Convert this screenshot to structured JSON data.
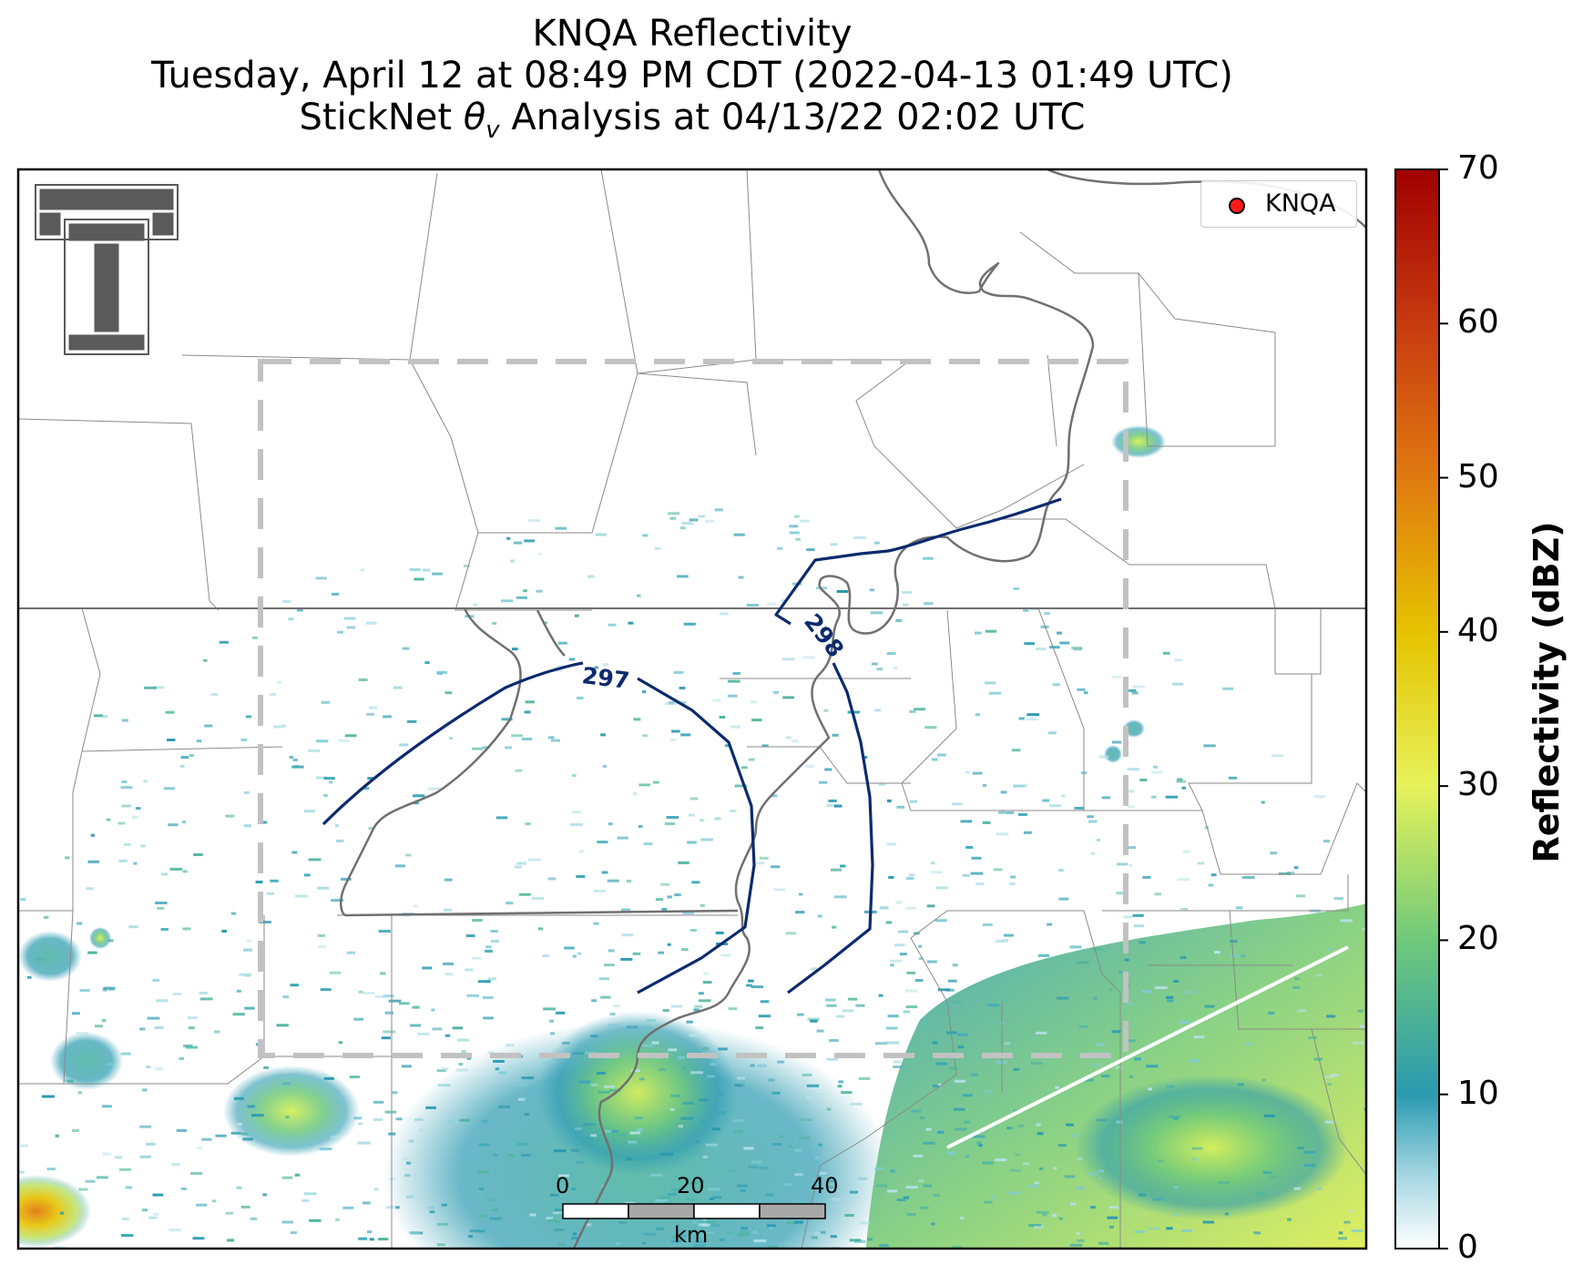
{
  "title": {
    "line1": "KNQA Reflectivity",
    "line2": "Tuesday, April 12 at 08:49 PM CDT (2022-04-13 01:49 UTC)",
    "line3_prefix": "StickNet ",
    "line3_theta": "θ",
    "line3_sub": "v",
    "line3_suffix": " Analysis at 04/13/22 02:02 UTC"
  },
  "legend": {
    "label": "KNQA",
    "marker_color": "#ff1a1a"
  },
  "logo": {
    "icon": "double-t-logo-icon",
    "color": "#555555"
  },
  "contours": [
    {
      "label": "297",
      "color": "#0b2a6e"
    },
    {
      "label": "298",
      "color": "#0b2a6e"
    }
  ],
  "scale_bar": {
    "labels": [
      "0",
      "20",
      "40"
    ],
    "unit": "km"
  },
  "colorbar": {
    "title": "Reflectivity (dBZ)",
    "ticks": [
      "0",
      "10",
      "20",
      "30",
      "40",
      "50",
      "60",
      "70"
    ],
    "range": [
      0,
      70
    ],
    "stops": [
      {
        "v": 0,
        "c": "#ffffff"
      },
      {
        "v": 5,
        "c": "#9fd4e0"
      },
      {
        "v": 10,
        "c": "#2a9ab0"
      },
      {
        "v": 20,
        "c": "#6fc97a"
      },
      {
        "v": 30,
        "c": "#e6f25a"
      },
      {
        "v": 40,
        "c": "#e6c300"
      },
      {
        "v": 50,
        "c": "#e07a10"
      },
      {
        "v": 60,
        "c": "#c83a10"
      },
      {
        "v": 70,
        "c": "#a00000"
      }
    ]
  }
}
